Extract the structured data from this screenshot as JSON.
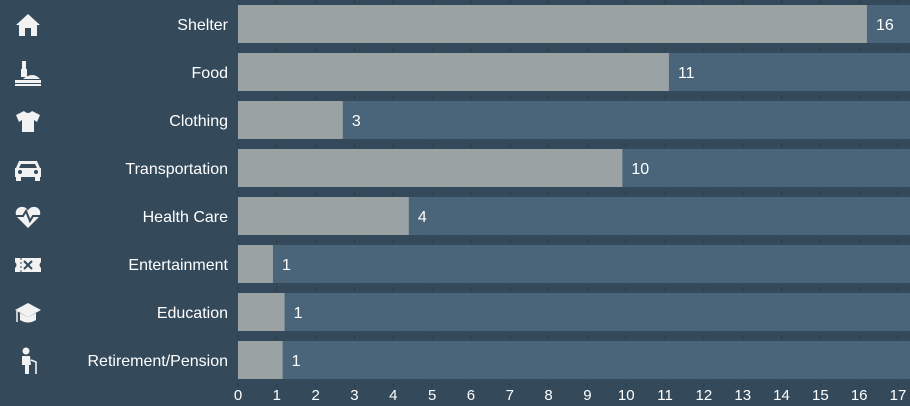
{
  "chart_data": {
    "type": "bar",
    "orientation": "horizontal",
    "categories": [
      "Shelter",
      "Food",
      "Clothing",
      "Transportation",
      "Health Care",
      "Entertainment",
      "Education",
      "Retirement/Pension"
    ],
    "icons": [
      "house-icon",
      "food-icon",
      "shirt-icon",
      "car-icon",
      "heart-pulse-icon",
      "ticket-icon",
      "graduation-cap-icon",
      "elderly-person-icon"
    ],
    "values": [
      16.2,
      11.1,
      2.7,
      9.9,
      4.4,
      0.9,
      1.2,
      1.15
    ],
    "value_labels": [
      "16",
      "11",
      "3",
      "10",
      "4",
      "1",
      "1",
      "1"
    ],
    "xlim": [
      0,
      17
    ],
    "xticks": [
      "0",
      "1",
      "2",
      "3",
      "4",
      "5",
      "6",
      "7",
      "8",
      "9",
      "10",
      "11",
      "12",
      "13",
      "14",
      "15",
      "16",
      "17"
    ],
    "colors": {
      "background": "#34495a",
      "track": "#4a6579",
      "bar": "#9aa2a3",
      "text": "#ffffff",
      "icon": "#f2f2f2"
    }
  }
}
